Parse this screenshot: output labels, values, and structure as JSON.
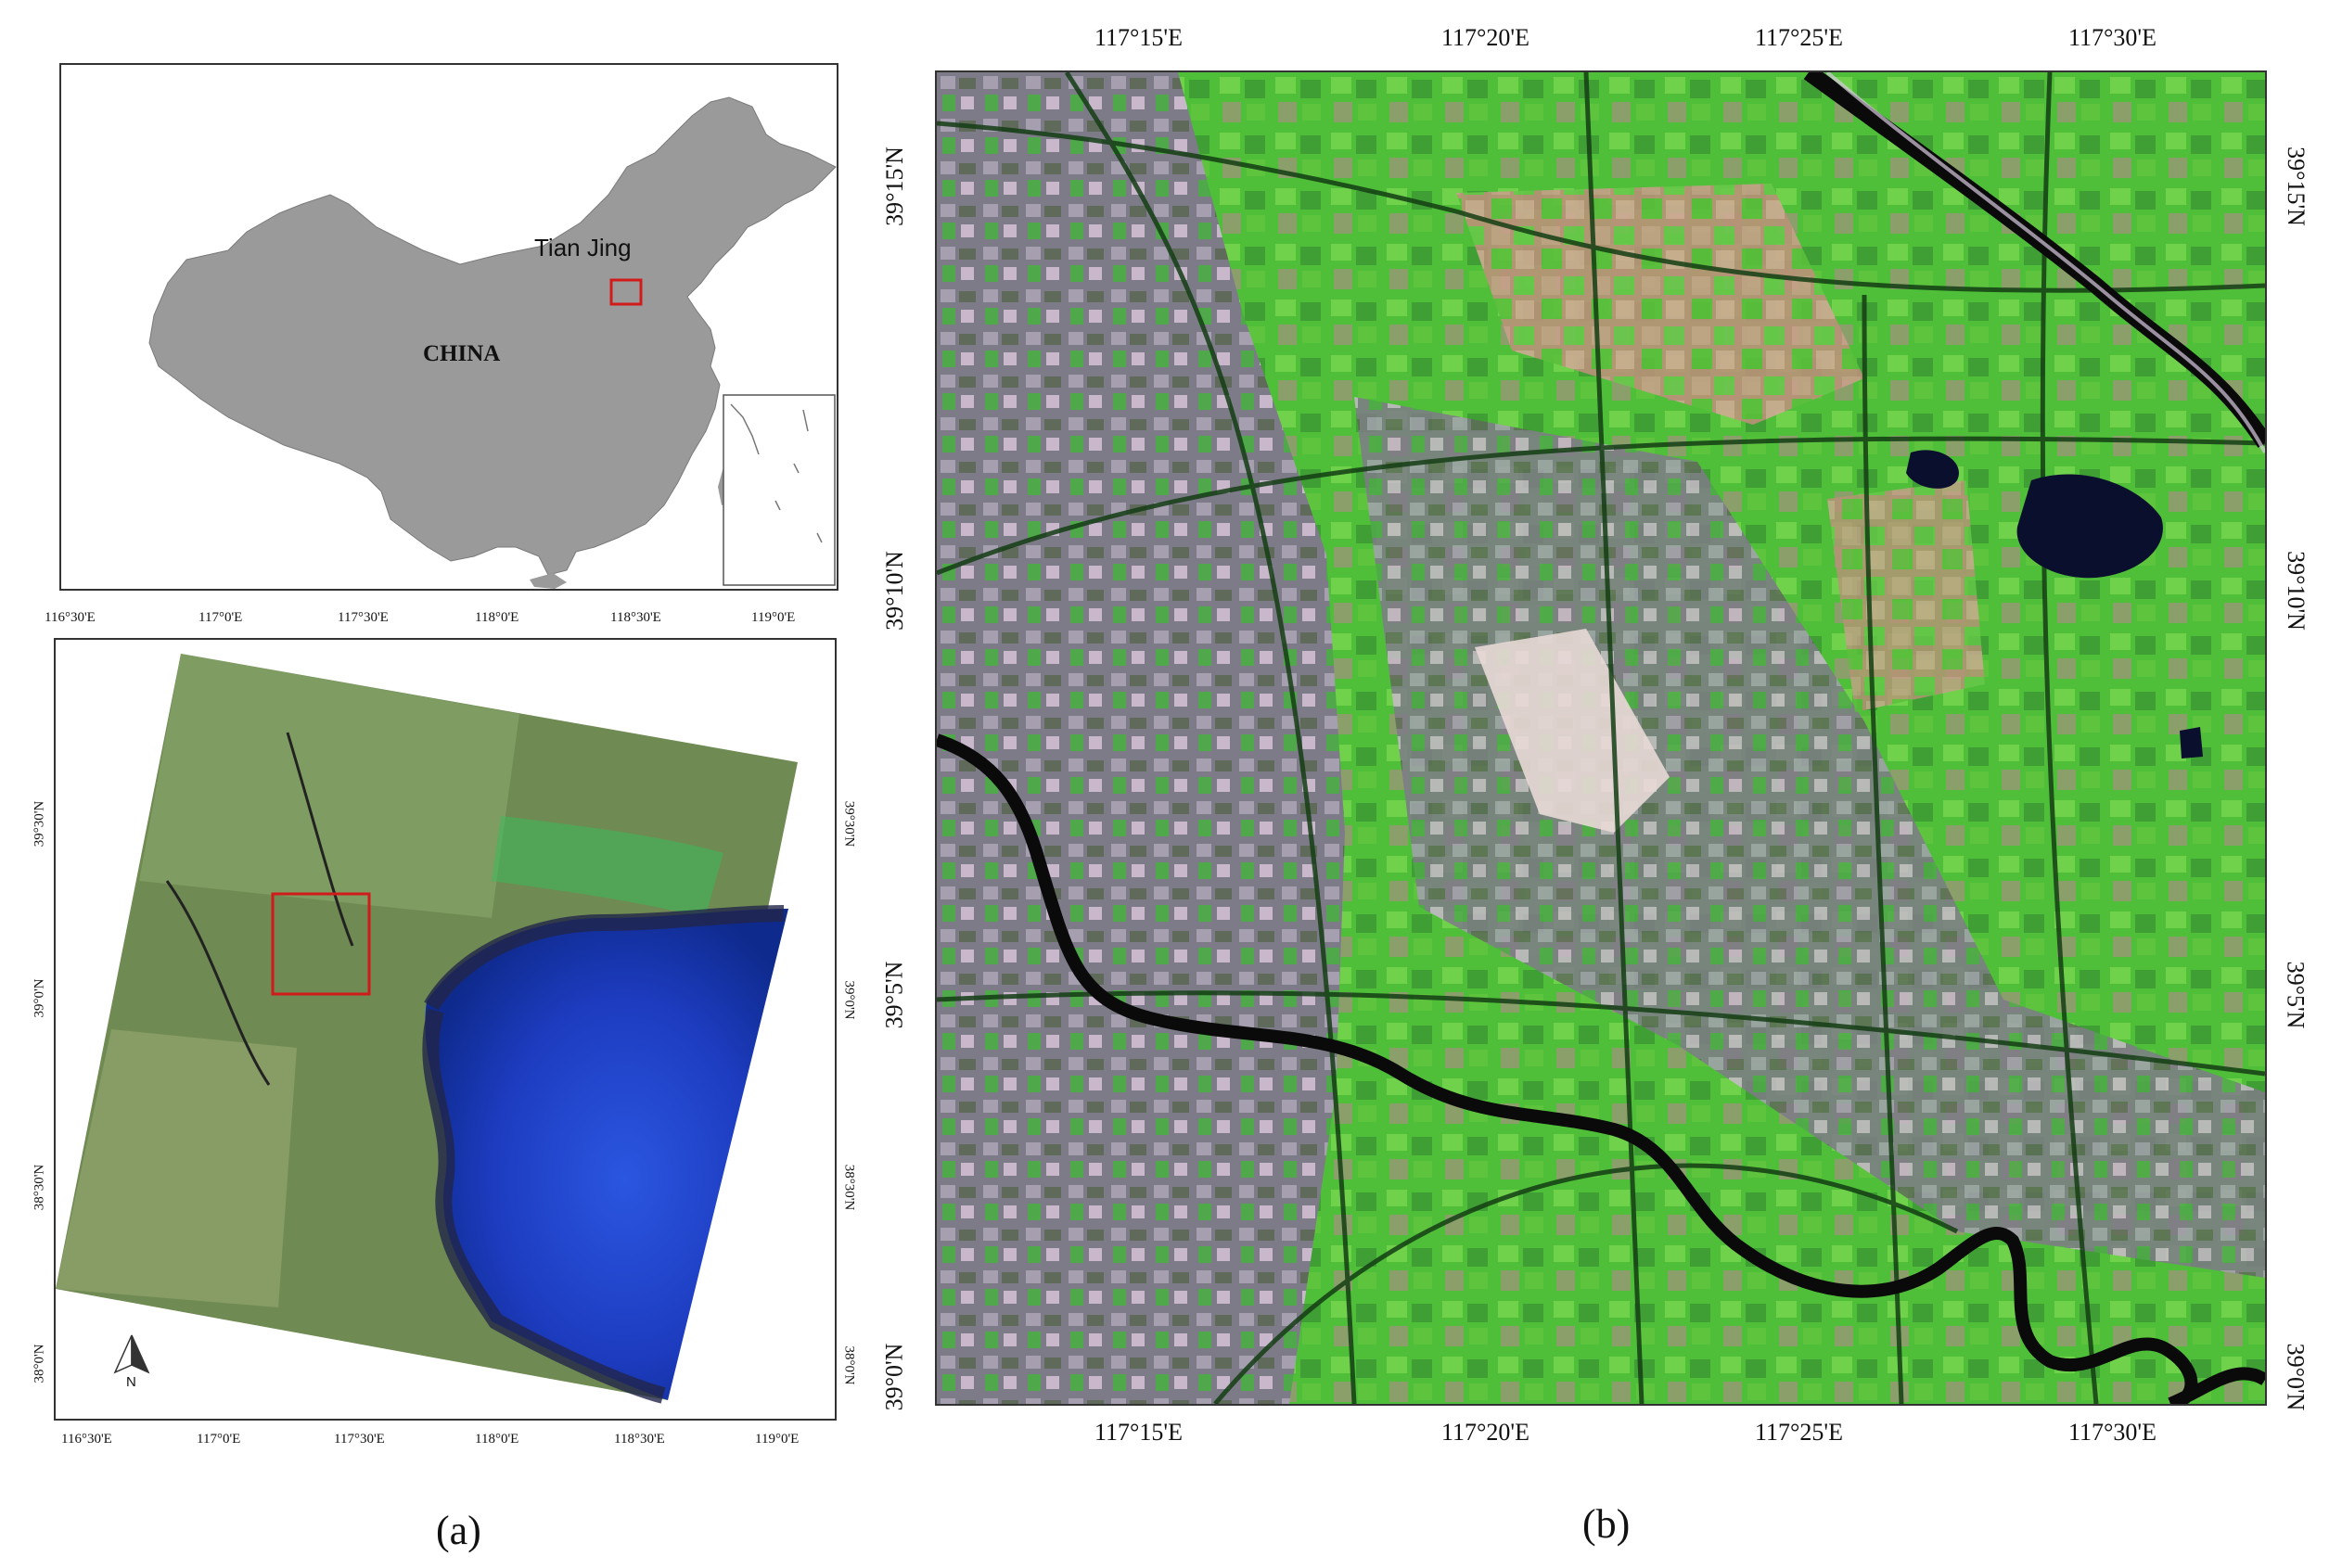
{
  "panel_a": {
    "inset_map": {
      "country_label": "CHINA",
      "city_label": "Tian Jing",
      "colors": {
        "land": "#9a9a9a",
        "highlight_box": "#d11a1a",
        "frame": "#333333"
      }
    },
    "scene_map": {
      "top_ticks": [
        "116°30'E",
        "117°0'E",
        "117°30'E",
        "118°0'E",
        "118°30'E",
        "119°0'E"
      ],
      "bottom_ticks": [
        "116°30'E",
        "117°0'E",
        "117°30'E",
        "118°0'E",
        "118°30'E",
        "119°0'E"
      ],
      "left_ticks": [
        "39°30'N",
        "39°0'N",
        "38°30'N",
        "38°0'N"
      ],
      "right_ticks": [
        "39°30'N",
        "39°0'N",
        "38°30'N",
        "38°0'N"
      ],
      "north_label": "N",
      "colors": {
        "land": "#6f8a52",
        "sea": "#1f3fbf",
        "study_area_box": "#d11a1a"
      }
    },
    "caption": "(a)"
  },
  "panel_b": {
    "top_ticks": [
      "117°15'E",
      "117°20'E",
      "117°25'E",
      "117°30'E"
    ],
    "bottom_ticks": [
      "117°15'E",
      "117°20'E",
      "117°25'E",
      "117°30'E"
    ],
    "left_ticks": [
      "39°15'N",
      "39°10'N",
      "39°5'N",
      "39°0'N"
    ],
    "right_ticks": [
      "39°15'N",
      "39°10'N",
      "39°5'N",
      "39°0'N"
    ],
    "colors": {
      "vegetation": "#55c23a",
      "urban": "#8e8a96",
      "river": "#0a0a0a",
      "lake": "#0b0f2e"
    },
    "caption": "(b)"
  }
}
